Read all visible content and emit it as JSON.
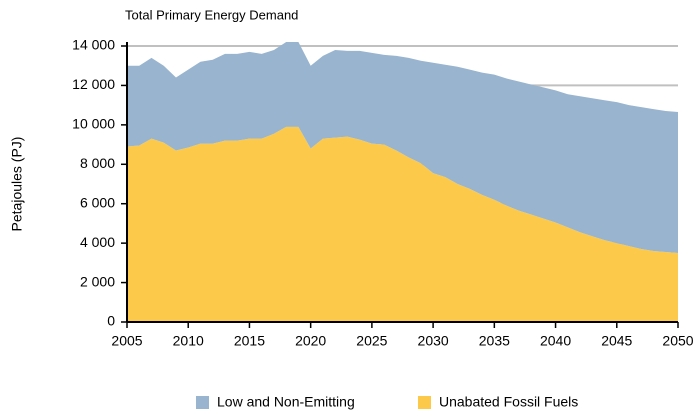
{
  "chart_data": {
    "type": "stacked-area",
    "title": "Total Primary Energy Demand",
    "y_label": "Petajoules (PJ)",
    "x": [
      2005,
      2006,
      2007,
      2008,
      2009,
      2010,
      2011,
      2012,
      2013,
      2014,
      2015,
      2016,
      2017,
      2018,
      2019,
      2020,
      2021,
      2022,
      2023,
      2024,
      2025,
      2026,
      2027,
      2028,
      2029,
      2030,
      2031,
      2032,
      2033,
      2034,
      2035,
      2036,
      2037,
      2038,
      2039,
      2040,
      2041,
      2042,
      2043,
      2044,
      2045,
      2046,
      2047,
      2048,
      2049,
      2050
    ],
    "series": [
      {
        "name": "Unabated Fossil Fuels",
        "color": "#fdc94a",
        "values": [
          8900,
          8950,
          9300,
          9100,
          8700,
          8850,
          9050,
          9050,
          9200,
          9200,
          9300,
          9300,
          9550,
          9900,
          9900,
          8800,
          9300,
          9350,
          9400,
          9250,
          9050,
          9000,
          8700,
          8350,
          8050,
          7550,
          7350,
          7000,
          6750,
          6450,
          6200,
          5900,
          5650,
          5450,
          5250,
          5050,
          4800,
          4550,
          4350,
          4150,
          4000,
          3850,
          3700,
          3600,
          3550,
          3500
        ]
      },
      {
        "name": "Low and Non-Emitting",
        "color": "#98b4cf",
        "values": [
          4100,
          4050,
          4100,
          3900,
          3700,
          3950,
          4150,
          4250,
          4400,
          4400,
          4400,
          4300,
          4250,
          4300,
          4300,
          4200,
          4200,
          4450,
          4350,
          4500,
          4600,
          4550,
          4800,
          5050,
          5200,
          5600,
          5700,
          5950,
          6050,
          6200,
          6350,
          6450,
          6550,
          6600,
          6650,
          6700,
          6750,
          6900,
          7000,
          7100,
          7150,
          7150,
          7200,
          7200,
          7150,
          7150
        ]
      }
    ],
    "xlim": [
      2005,
      2050
    ],
    "xticks": [
      2005,
      2010,
      2015,
      2020,
      2025,
      2030,
      2035,
      2040,
      2045,
      2050
    ],
    "ylim": [
      0,
      14000
    ],
    "yticks": [
      0,
      {
        "value": 2000,
        "label": "2 000"
      },
      {
        "value": 4000,
        "label": "4 000"
      },
      {
        "value": 6000,
        "label": "6 000"
      },
      {
        "value": 8000,
        "label": "8 000"
      },
      {
        "value": 10000,
        "label": "10 000"
      },
      {
        "value": 12000,
        "label": "12 000"
      },
      {
        "value": 14000,
        "label": "14 000"
      }
    ],
    "grid": true,
    "legend": "bottom"
  }
}
